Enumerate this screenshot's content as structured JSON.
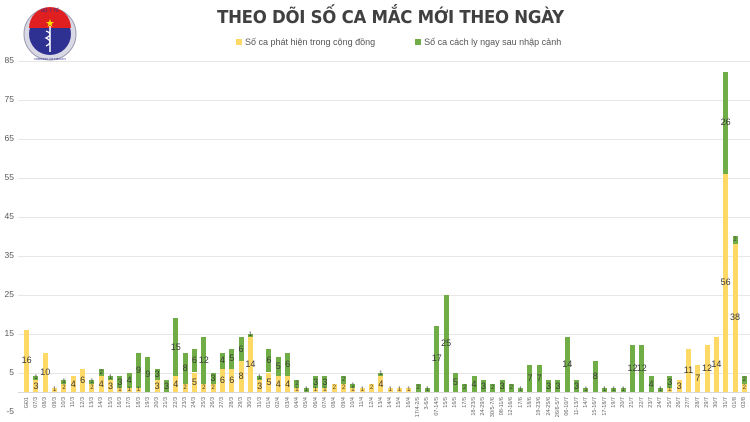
{
  "header": {
    "logo": {
      "text_top": "BỘ Y TẾ",
      "text_bottom": "MINISTRY OF HEALTH",
      "icon": "caduceus-icon"
    },
    "title": "THEO DÕI SỐ CA MẮC MỚI THEO NGÀY"
  },
  "legend": [
    {
      "label": "Số ca phát hiện trong cộng đồng",
      "color": "#ffd966"
    },
    {
      "label": "Số ca cách ly ngay sau nhập cảnh",
      "color": "#70ad47"
    }
  ],
  "chart_data": {
    "type": "bar",
    "stacked": true,
    "title": "THEO DÕI SỐ CA MẮC MỚI THEO NGÀY",
    "xlabel": "",
    "ylabel": "",
    "ylim": [
      -5,
      85
    ],
    "yticks": [
      -5,
      5,
      15,
      25,
      35,
      45,
      55,
      65,
      75,
      85
    ],
    "grid": true,
    "legend_position": "top",
    "categories": [
      "GĐ1",
      "07/3",
      "08/3",
      "09/3",
      "10/3",
      "11/3",
      "12/3",
      "13/3",
      "14/3",
      "15/3",
      "16/3",
      "17/3",
      "18/3",
      "19/3",
      "20/3",
      "21/3",
      "22/3",
      "23/3",
      "24/3",
      "25/3",
      "26/3",
      "27/3",
      "28/3",
      "29/3",
      "30/3",
      "31/3",
      "01/4",
      "02/4",
      "03/4",
      "04/4",
      "05/4",
      "06/4",
      "07/4",
      "08/4",
      "09/4",
      "10/4",
      "11/4",
      "12/4",
      "13/4",
      "14/4",
      "15/4",
      "16/4",
      "17/4-2/5",
      "3-6/5",
      "07-14/5",
      "15/5",
      "16/5",
      "17/5",
      "18-23/5",
      "24-29/5",
      "30/5-7/6",
      "08-11/6",
      "12-16/6",
      "17/6",
      "18/6",
      "19-23/6",
      "24-25/6",
      "26/6-5/7",
      "06-10/7",
      "11-13/7",
      "14/7",
      "15-16/7",
      "17-18/7",
      "19/7",
      "20/7",
      "21/7",
      "22/7",
      "23/7",
      "24/7",
      "25/7",
      "26/7",
      "27/7",
      "28/7",
      "29/7",
      "30/7",
      "31/7",
      "01/8",
      "02/8"
    ],
    "series": [
      {
        "name": "Số ca phát hiện trong cộng đồng",
        "color": "#ffd966",
        "values": [
          16,
          3,
          10,
          1,
          2,
          4,
          6,
          2,
          4,
          3,
          1,
          1,
          1,
          0,
          3,
          0,
          4,
          2,
          5,
          2,
          2,
          6,
          6,
          8,
          14,
          3,
          5,
          4,
          4,
          1,
          0,
          1,
          1,
          2,
          2,
          1,
          1,
          2,
          4,
          1,
          1,
          1,
          0,
          0,
          0,
          0,
          0,
          0,
          0,
          0,
          0,
          0,
          0,
          0,
          0,
          0,
          0,
          0,
          0,
          0,
          0,
          0,
          0,
          0,
          0,
          0,
          0,
          0,
          0,
          1,
          3,
          11,
          7,
          12,
          14,
          56,
          38,
          2
        ]
      },
      {
        "name": "Số ca cách ly ngay sau nhập cảnh",
        "color": "#70ad47",
        "values": [
          0,
          1,
          0,
          0,
          1,
          0,
          0,
          1,
          2,
          1,
          3,
          4,
          9,
          9,
          3,
          3,
          15,
          8,
          6,
          12,
          3,
          4,
          5,
          6,
          1,
          1,
          6,
          5,
          6,
          2,
          1,
          3,
          3,
          0,
          2,
          1,
          0,
          0,
          1,
          0,
          0,
          0,
          2,
          1,
          17,
          25,
          5,
          2,
          4,
          3,
          2,
          3,
          2,
          1,
          7,
          7,
          3,
          3,
          14,
          3,
          1,
          8,
          1,
          1,
          1,
          12,
          12,
          4,
          1,
          3,
          0,
          0,
          0,
          0,
          0,
          26,
          2,
          2
        ]
      }
    ]
  }
}
